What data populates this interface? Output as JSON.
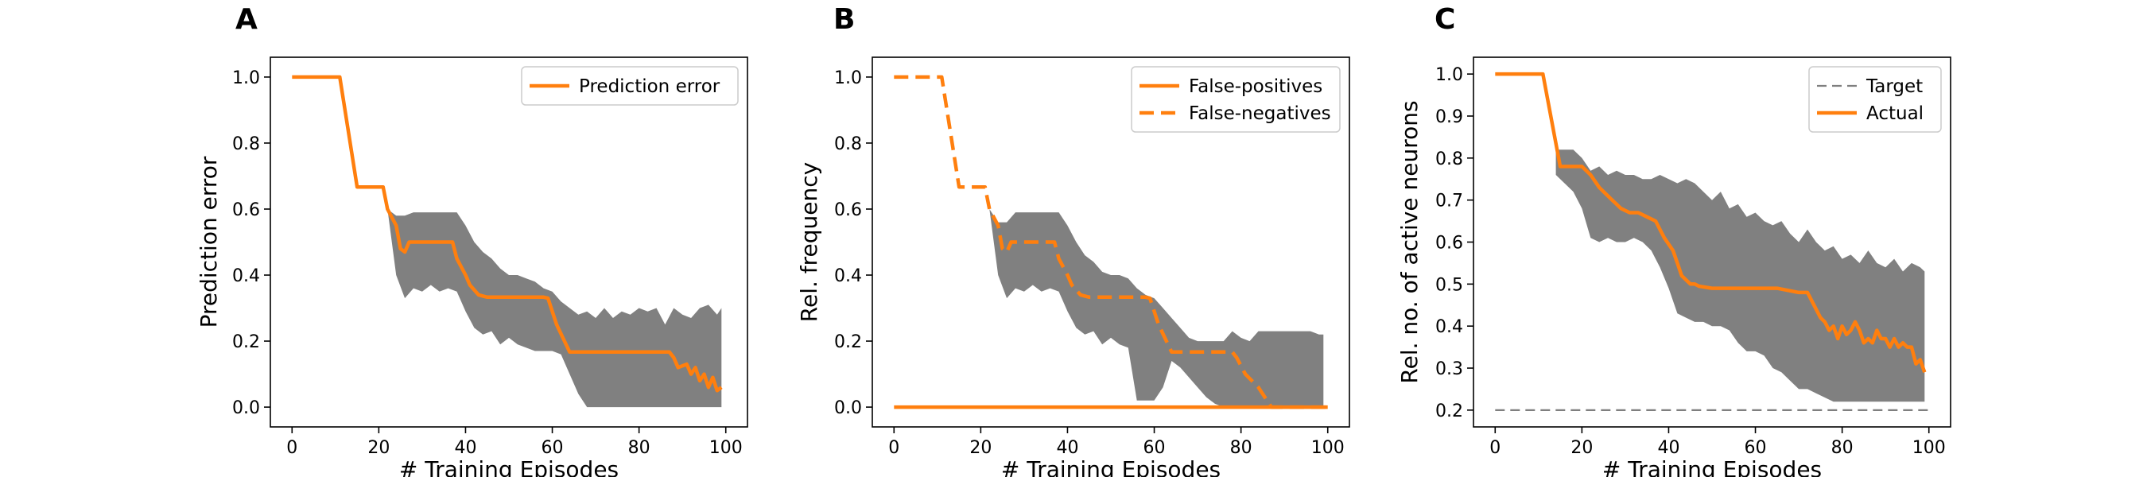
{
  "colors": {
    "orange": "#ff7f0e",
    "band": "#808080",
    "target": "#7f7f7f"
  },
  "chart_data": [
    {
      "type": "line",
      "panel_letter": "A",
      "xlabel": "# Training Episodes",
      "ylabel": "Prediction error",
      "xlim": [
        -5,
        105
      ],
      "ylim": [
        -0.06,
        1.06
      ],
      "xticks": [
        0,
        20,
        40,
        60,
        80,
        100
      ],
      "xtick_labels": [
        "0",
        "20",
        "40",
        "60",
        "80",
        "100"
      ],
      "yticks": [
        0.0,
        0.2,
        0.4,
        0.6,
        0.8,
        1.0
      ],
      "ytick_labels": [
        "0.0",
        "0.2",
        "0.4",
        "0.6",
        "0.8",
        "1.0"
      ],
      "grid": false,
      "legend": "top-right",
      "series": [
        {
          "name": "Prediction error",
          "style": "solid",
          "color": "#ff7f0e",
          "x": [
            0,
            11,
            15,
            21,
            22,
            24,
            25,
            26,
            27,
            30,
            37,
            38,
            40,
            41,
            43,
            45,
            47,
            50,
            58,
            59,
            61,
            64,
            87,
            88,
            89,
            91,
            92,
            93,
            94,
            95,
            96,
            97,
            98,
            99
          ],
          "y": [
            1.0,
            1.0,
            0.667,
            0.667,
            0.6,
            0.55,
            0.48,
            0.47,
            0.5,
            0.5,
            0.5,
            0.45,
            0.4,
            0.37,
            0.34,
            0.333,
            0.333,
            0.333,
            0.333,
            0.33,
            0.25,
            0.167,
            0.167,
            0.15,
            0.12,
            0.13,
            0.1,
            0.12,
            0.08,
            0.1,
            0.06,
            0.09,
            0.05,
            0.06
          ]
        }
      ],
      "band": {
        "x": [
          22,
          24,
          26,
          28,
          30,
          32,
          34,
          36,
          38,
          40,
          42,
          44,
          46,
          48,
          50,
          52,
          54,
          56,
          58,
          60,
          62,
          64,
          66,
          68,
          70,
          72,
          74,
          76,
          78,
          80,
          82,
          84,
          86,
          88,
          90,
          92,
          94,
          96,
          98,
          99
        ],
        "upper": [
          0.6,
          0.58,
          0.58,
          0.59,
          0.59,
          0.59,
          0.59,
          0.59,
          0.59,
          0.55,
          0.5,
          0.47,
          0.45,
          0.42,
          0.4,
          0.4,
          0.39,
          0.38,
          0.36,
          0.35,
          0.32,
          0.3,
          0.28,
          0.29,
          0.27,
          0.3,
          0.27,
          0.29,
          0.28,
          0.3,
          0.29,
          0.3,
          0.25,
          0.3,
          0.28,
          0.27,
          0.3,
          0.31,
          0.28,
          0.3
        ],
        "lower": [
          0.6,
          0.4,
          0.33,
          0.36,
          0.35,
          0.37,
          0.35,
          0.36,
          0.35,
          0.29,
          0.24,
          0.22,
          0.23,
          0.19,
          0.21,
          0.19,
          0.18,
          0.17,
          0.17,
          0.17,
          0.16,
          0.1,
          0.04,
          0.0,
          0.0,
          0.0,
          0.0,
          0.0,
          0.0,
          0.0,
          0.0,
          0.0,
          0.0,
          0.0,
          0.0,
          0.0,
          0.0,
          0.0,
          0.0,
          0.0
        ]
      }
    },
    {
      "type": "line",
      "panel_letter": "B",
      "xlabel": "# Training Episodes",
      "ylabel": "Rel. frequency",
      "xlim": [
        -5,
        105
      ],
      "ylim": [
        -0.06,
        1.06
      ],
      "xticks": [
        0,
        20,
        40,
        60,
        80,
        100
      ],
      "xtick_labels": [
        "0",
        "20",
        "40",
        "60",
        "80",
        "100"
      ],
      "yticks": [
        0.0,
        0.2,
        0.4,
        0.6,
        0.8,
        1.0
      ],
      "ytick_labels": [
        "0.0",
        "0.2",
        "0.4",
        "0.6",
        "0.8",
        "1.0"
      ],
      "grid": false,
      "legend": "top-right",
      "series": [
        {
          "name": "False-positives",
          "style": "solid",
          "color": "#ff7f0e",
          "x": [
            0,
            100
          ],
          "y": [
            0.0,
            0.0
          ]
        },
        {
          "name": "False-negatives",
          "style": "dashed",
          "color": "#ff7f0e",
          "x": [
            0,
            11,
            15,
            21,
            22,
            24,
            25,
            26,
            27,
            30,
            37,
            38,
            40,
            41,
            43,
            45,
            47,
            50,
            58,
            59,
            61,
            64,
            78,
            79,
            81,
            84,
            87,
            88,
            100
          ],
          "y": [
            1.0,
            1.0,
            0.667,
            0.667,
            0.6,
            0.55,
            0.48,
            0.47,
            0.5,
            0.5,
            0.5,
            0.45,
            0.4,
            0.37,
            0.34,
            0.333,
            0.333,
            0.333,
            0.333,
            0.33,
            0.25,
            0.167,
            0.167,
            0.15,
            0.1,
            0.06,
            0.0,
            0.0,
            0.0
          ]
        }
      ],
      "band": {
        "x": [
          22,
          24,
          26,
          28,
          30,
          32,
          34,
          36,
          38,
          40,
          42,
          44,
          46,
          48,
          50,
          52,
          54,
          56,
          58,
          60,
          62,
          64,
          66,
          68,
          70,
          72,
          74,
          76,
          78,
          80,
          82,
          84,
          86,
          88,
          90,
          92,
          94,
          96,
          98,
          99
        ],
        "upper": [
          0.6,
          0.56,
          0.56,
          0.59,
          0.59,
          0.59,
          0.59,
          0.59,
          0.59,
          0.55,
          0.5,
          0.46,
          0.44,
          0.41,
          0.4,
          0.4,
          0.39,
          0.36,
          0.34,
          0.33,
          0.3,
          0.27,
          0.24,
          0.21,
          0.2,
          0.2,
          0.2,
          0.2,
          0.23,
          0.21,
          0.2,
          0.23,
          0.23,
          0.23,
          0.23,
          0.23,
          0.23,
          0.23,
          0.22,
          0.22
        ],
        "lower": [
          0.6,
          0.4,
          0.33,
          0.36,
          0.35,
          0.37,
          0.35,
          0.36,
          0.35,
          0.29,
          0.24,
          0.22,
          0.23,
          0.19,
          0.21,
          0.19,
          0.18,
          0.02,
          0.02,
          0.02,
          0.06,
          0.14,
          0.12,
          0.09,
          0.06,
          0.03,
          0.01,
          0.0,
          0.0,
          0.0,
          0.0,
          0.0,
          0.0,
          0.0,
          0.0,
          0.0,
          0.0,
          0.0,
          0.0,
          0.0
        ]
      }
    },
    {
      "type": "line",
      "panel_letter": "C",
      "xlabel": "# Training Episodes",
      "ylabel": "Rel. no. of active neurons",
      "xlim": [
        -5,
        105
      ],
      "ylim": [
        0.16,
        1.04
      ],
      "xticks": [
        0,
        20,
        40,
        60,
        80,
        100
      ],
      "xtick_labels": [
        "0",
        "20",
        "40",
        "60",
        "80",
        "100"
      ],
      "yticks": [
        0.2,
        0.3,
        0.4,
        0.5,
        0.6,
        0.7,
        0.8,
        0.9,
        1.0
      ],
      "ytick_labels": [
        "0.2",
        "0.3",
        "0.4",
        "0.5",
        "0.6",
        "0.7",
        "0.8",
        "0.9",
        "1.0"
      ],
      "grid": false,
      "legend": "top-right",
      "series": [
        {
          "name": "Target",
          "style": "dashed-thin",
          "color": "#7f7f7f",
          "x": [
            0,
            100
          ],
          "y": [
            0.2,
            0.2
          ]
        },
        {
          "name": "Actual",
          "style": "solid",
          "color": "#ff7f0e",
          "x": [
            0,
            11,
            13,
            15,
            16,
            19,
            20,
            22,
            24,
            25,
            27,
            29,
            31,
            33,
            35,
            37,
            38,
            39,
            41,
            42,
            43,
            45,
            46,
            47,
            50,
            55,
            60,
            65,
            70,
            72,
            74,
            75,
            76,
            77,
            78,
            79,
            80,
            81,
            82,
            83,
            84,
            85,
            86,
            87,
            88,
            89,
            90,
            91,
            92,
            93,
            94,
            95,
            96,
            97,
            98,
            99
          ],
          "y": [
            1.0,
            1.0,
            0.89,
            0.78,
            0.78,
            0.78,
            0.78,
            0.76,
            0.73,
            0.72,
            0.7,
            0.68,
            0.67,
            0.67,
            0.66,
            0.65,
            0.63,
            0.61,
            0.58,
            0.55,
            0.52,
            0.5,
            0.5,
            0.495,
            0.49,
            0.49,
            0.49,
            0.49,
            0.48,
            0.48,
            0.44,
            0.42,
            0.41,
            0.39,
            0.4,
            0.37,
            0.4,
            0.38,
            0.39,
            0.41,
            0.39,
            0.36,
            0.37,
            0.36,
            0.39,
            0.37,
            0.37,
            0.35,
            0.37,
            0.35,
            0.36,
            0.35,
            0.35,
            0.31,
            0.32,
            0.29
          ]
        }
      ],
      "band": {
        "x": [
          14,
          16,
          18,
          20,
          22,
          24,
          26,
          28,
          30,
          32,
          34,
          36,
          38,
          40,
          42,
          44,
          46,
          48,
          50,
          52,
          54,
          56,
          58,
          60,
          62,
          64,
          66,
          68,
          70,
          72,
          74,
          76,
          78,
          80,
          82,
          84,
          86,
          88,
          90,
          92,
          94,
          96,
          98,
          99
        ],
        "upper": [
          0.82,
          0.82,
          0.82,
          0.8,
          0.77,
          0.78,
          0.76,
          0.77,
          0.76,
          0.76,
          0.75,
          0.75,
          0.76,
          0.75,
          0.74,
          0.75,
          0.74,
          0.72,
          0.7,
          0.72,
          0.68,
          0.69,
          0.66,
          0.67,
          0.65,
          0.64,
          0.65,
          0.62,
          0.6,
          0.63,
          0.6,
          0.58,
          0.59,
          0.56,
          0.57,
          0.55,
          0.58,
          0.55,
          0.54,
          0.56,
          0.53,
          0.55,
          0.54,
          0.53
        ],
        "lower": [
          0.76,
          0.74,
          0.72,
          0.68,
          0.61,
          0.6,
          0.61,
          0.6,
          0.6,
          0.61,
          0.6,
          0.58,
          0.54,
          0.49,
          0.43,
          0.42,
          0.41,
          0.41,
          0.4,
          0.4,
          0.39,
          0.36,
          0.34,
          0.34,
          0.33,
          0.3,
          0.29,
          0.27,
          0.25,
          0.25,
          0.24,
          0.23,
          0.22,
          0.22,
          0.22,
          0.22,
          0.22,
          0.22,
          0.22,
          0.22,
          0.22,
          0.22,
          0.22,
          0.22
        ]
      }
    }
  ]
}
